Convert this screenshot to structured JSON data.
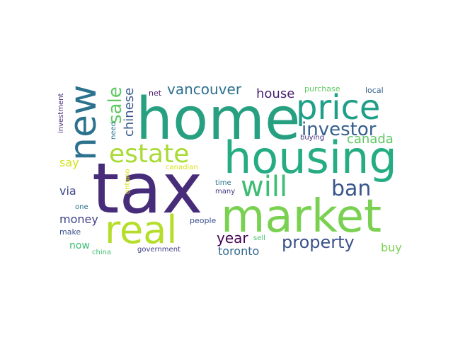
{
  "words": [
    {
      "text": "tax",
      "color": "#472c7a"
    },
    {
      "text": "home",
      "color": "#27a081"
    },
    {
      "text": "housing",
      "color": "#25ac82"
    },
    {
      "text": "market",
      "color": "#7ad151"
    },
    {
      "text": "price",
      "color": "#1f9f88"
    },
    {
      "text": "real",
      "color": "#b5de2b"
    },
    {
      "text": "new",
      "color": "#2c728e"
    },
    {
      "text": "estate",
      "color": "#a8db34"
    },
    {
      "text": "will",
      "color": "#3dbc74"
    },
    {
      "text": "investor",
      "color": "#355f8d"
    },
    {
      "text": "ban",
      "color": "#39568c"
    },
    {
      "text": "property",
      "color": "#3b528b"
    },
    {
      "text": "vancouver",
      "color": "#2d708e"
    },
    {
      "text": "sale",
      "color": "#5ec962"
    },
    {
      "text": "house",
      "color": "#481f70"
    },
    {
      "text": "canada",
      "color": "#5ec962"
    },
    {
      "text": "chinese",
      "color": "#38598c"
    },
    {
      "text": "year",
      "color": "#440154"
    },
    {
      "text": "toronto",
      "color": "#31688e"
    },
    {
      "text": "money",
      "color": "#404387"
    },
    {
      "text": "buy",
      "color": "#7ad151"
    },
    {
      "text": "via",
      "color": "#3e4a89"
    },
    {
      "text": "say",
      "color": "#d2e21b"
    },
    {
      "text": "now",
      "color": "#3dbc74"
    },
    {
      "text": "purchase",
      "color": "#5ec962"
    },
    {
      "text": "local",
      "color": "#33628d"
    },
    {
      "text": "buying",
      "color": "#46327e"
    },
    {
      "text": "net",
      "color": "#481769"
    },
    {
      "text": "need",
      "color": "#2a788e"
    },
    {
      "text": "canadian",
      "color": "#d8e219"
    },
    {
      "text": "ontario",
      "color": "#d8e219"
    },
    {
      "text": "time",
      "color": "#2a768e"
    },
    {
      "text": "many",
      "color": "#453781"
    },
    {
      "text": "people",
      "color": "#3b528b"
    },
    {
      "text": "sell",
      "color": "#4ac16d"
    },
    {
      "text": "one",
      "color": "#2c728e"
    },
    {
      "text": "make",
      "color": "#3b528b"
    },
    {
      "text": "china",
      "color": "#44bf70"
    },
    {
      "text": "government",
      "color": "#424086"
    },
    {
      "text": "investment",
      "color": "#472d7b"
    }
  ]
}
